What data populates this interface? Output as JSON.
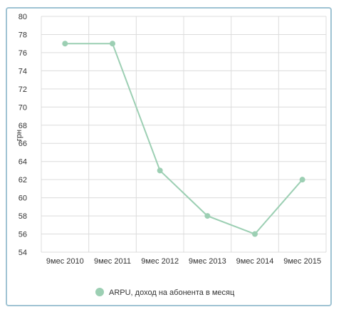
{
  "chart_data": {
    "type": "line",
    "categories": [
      "9мес 2010",
      "9мес 2011",
      "9мес 2012",
      "9мес 2013",
      "9мес 2014",
      "9мес 2015"
    ],
    "series": [
      {
        "name": "ARPU, доход на абонента в месяц",
        "values": [
          77,
          77,
          63,
          58,
          56,
          62
        ]
      }
    ],
    "ylabel": "грн",
    "xlabel": "",
    "ylim": [
      54,
      80
    ],
    "yticks": [
      54,
      56,
      58,
      60,
      62,
      64,
      66,
      68,
      70,
      72,
      74,
      76,
      78,
      80
    ],
    "grid": true,
    "legend_position": "bottom",
    "colors": {
      "series": "#9ccfb3",
      "grid": "#dcdcdc",
      "border": "#9fc3d3"
    }
  }
}
